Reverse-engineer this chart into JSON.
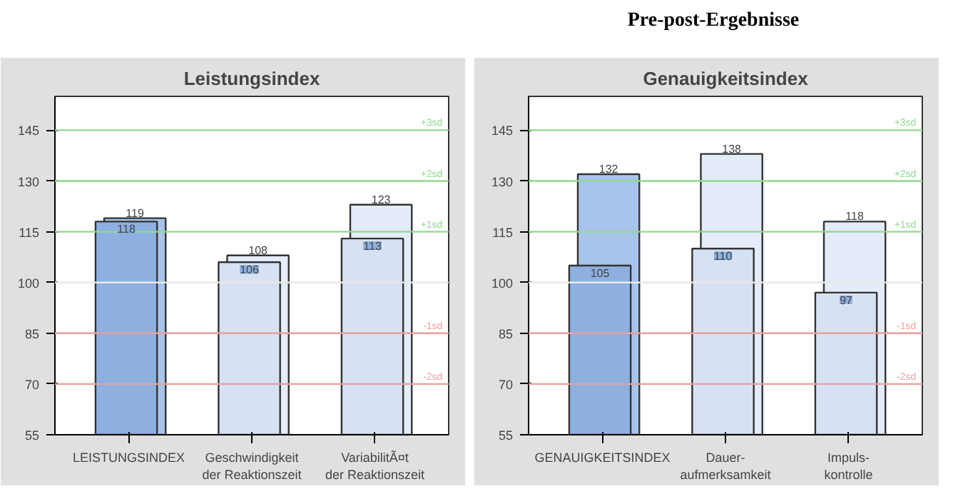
{
  "chart_data": [
    {
      "type": "bar",
      "title": "Leistungsindex",
      "annotations": [
        "Pre-post-Ergebnisse"
      ],
      "categories": [
        "LEISTUNGSINDEX",
        "Geschwindigkeit\nder Reaktionszeit",
        "VariabilitÃ¤t\nder Reaktionszeit"
      ],
      "series": [
        {
          "colors": [
            "#8db0e0",
            "#d6e2f3",
            "#d6e2f3"
          ],
          "values": [
            118,
            106,
            113
          ]
        },
        {
          "colors": [
            "#a8c4ea",
            "#e3ecf8",
            "#e3ecf8"
          ],
          "values": [
            119,
            108,
            123
          ]
        }
      ],
      "data_labels": true,
      "ylim": [
        55,
        155
      ],
      "yticks": [
        55,
        70,
        85,
        100,
        115,
        130,
        145
      ],
      "grid": false,
      "ref_lines": [
        {
          "axis": "y",
          "value": 145,
          "label": "+3sd",
          "color": "#90d890"
        },
        {
          "axis": "y",
          "value": 130,
          "label": "+2sd",
          "color": "#90d890"
        },
        {
          "axis": "y",
          "value": 115,
          "label": "+1sd",
          "color": "#90d890"
        },
        {
          "axis": "y",
          "value": 100,
          "label": null,
          "color": "#e8e8e8"
        },
        {
          "axis": "y",
          "value": 85,
          "label": "-1sd",
          "color": "#e8a0a0"
        },
        {
          "axis": "y",
          "value": 70,
          "label": "-2sd",
          "color": "#e8a0a0"
        }
      ]
    },
    {
      "type": "bar",
      "title": "Genauigkeitsindex",
      "categories": [
        "GENAUIGKEITSINDEX",
        "Dauer-\naufmerksamkeit",
        "Impuls-\nkontrolle"
      ],
      "series": [
        {
          "colors": [
            "#8db0e0",
            "#d6e2f3",
            "#d6e2f3"
          ],
          "values": [
            105,
            110,
            97
          ]
        },
        {
          "colors": [
            "#a8c4ea",
            "#e3ecf8",
            "#e3ecf8"
          ],
          "values": [
            132,
            138,
            118
          ]
        }
      ],
      "data_labels": true,
      "ylim": [
        55,
        155
      ],
      "yticks": [
        55,
        70,
        85,
        100,
        115,
        130,
        145
      ],
      "grid": false,
      "ref_lines": [
        {
          "axis": "y",
          "value": 145,
          "label": "+3sd",
          "color": "#90d890"
        },
        {
          "axis": "y",
          "value": 130,
          "label": "+2sd",
          "color": "#90d890"
        },
        {
          "axis": "y",
          "value": 115,
          "label": "+1sd",
          "color": "#90d890"
        },
        {
          "axis": "y",
          "value": 100,
          "label": null,
          "color": "#e8e8e8"
        },
        {
          "axis": "y",
          "value": 85,
          "label": "-1sd",
          "color": "#e8a0a0"
        },
        {
          "axis": "y",
          "value": 70,
          "label": "-2sd",
          "color": "#e8a0a0"
        }
      ]
    }
  ]
}
